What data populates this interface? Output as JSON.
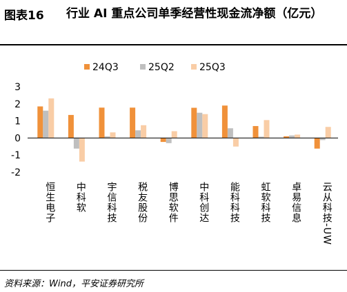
{
  "header": {
    "figure_label": "图表16",
    "title": "行业 AI 重点公司单季经营性现金流净额（亿元）"
  },
  "footer": {
    "source": "资料来源：Wind，平安证券研究所"
  },
  "chart_data": {
    "type": "bar",
    "categories": [
      "恒生电子",
      "中科软",
      "宇信科技",
      "税友股份",
      "博思软件",
      "中科创达",
      "能科科技",
      "虹软科技",
      "卓易信息",
      "云从科技-UW"
    ],
    "series": [
      {
        "name": "24Q3",
        "color": "#F0913A",
        "values": [
          1.85,
          1.35,
          1.78,
          1.78,
          -0.23,
          1.77,
          1.9,
          0.7,
          0.1,
          -0.62
        ]
      },
      {
        "name": "25Q2",
        "color": "#BFBFBF",
        "values": [
          1.6,
          -0.62,
          0.1,
          0.45,
          -0.3,
          1.48,
          0.57,
          0.08,
          0.15,
          -0.12
        ]
      },
      {
        "name": "25Q3",
        "color": "#F9CDA6",
        "values": [
          2.32,
          -1.38,
          0.33,
          0.75,
          0.4,
          1.4,
          -0.5,
          1.05,
          0.2,
          0.65
        ]
      }
    ],
    "yticks": [
      -2,
      -1,
      0,
      1,
      2,
      3
    ],
    "ylim": [
      -2,
      3
    ],
    "legend_position": "top",
    "grid": false
  }
}
